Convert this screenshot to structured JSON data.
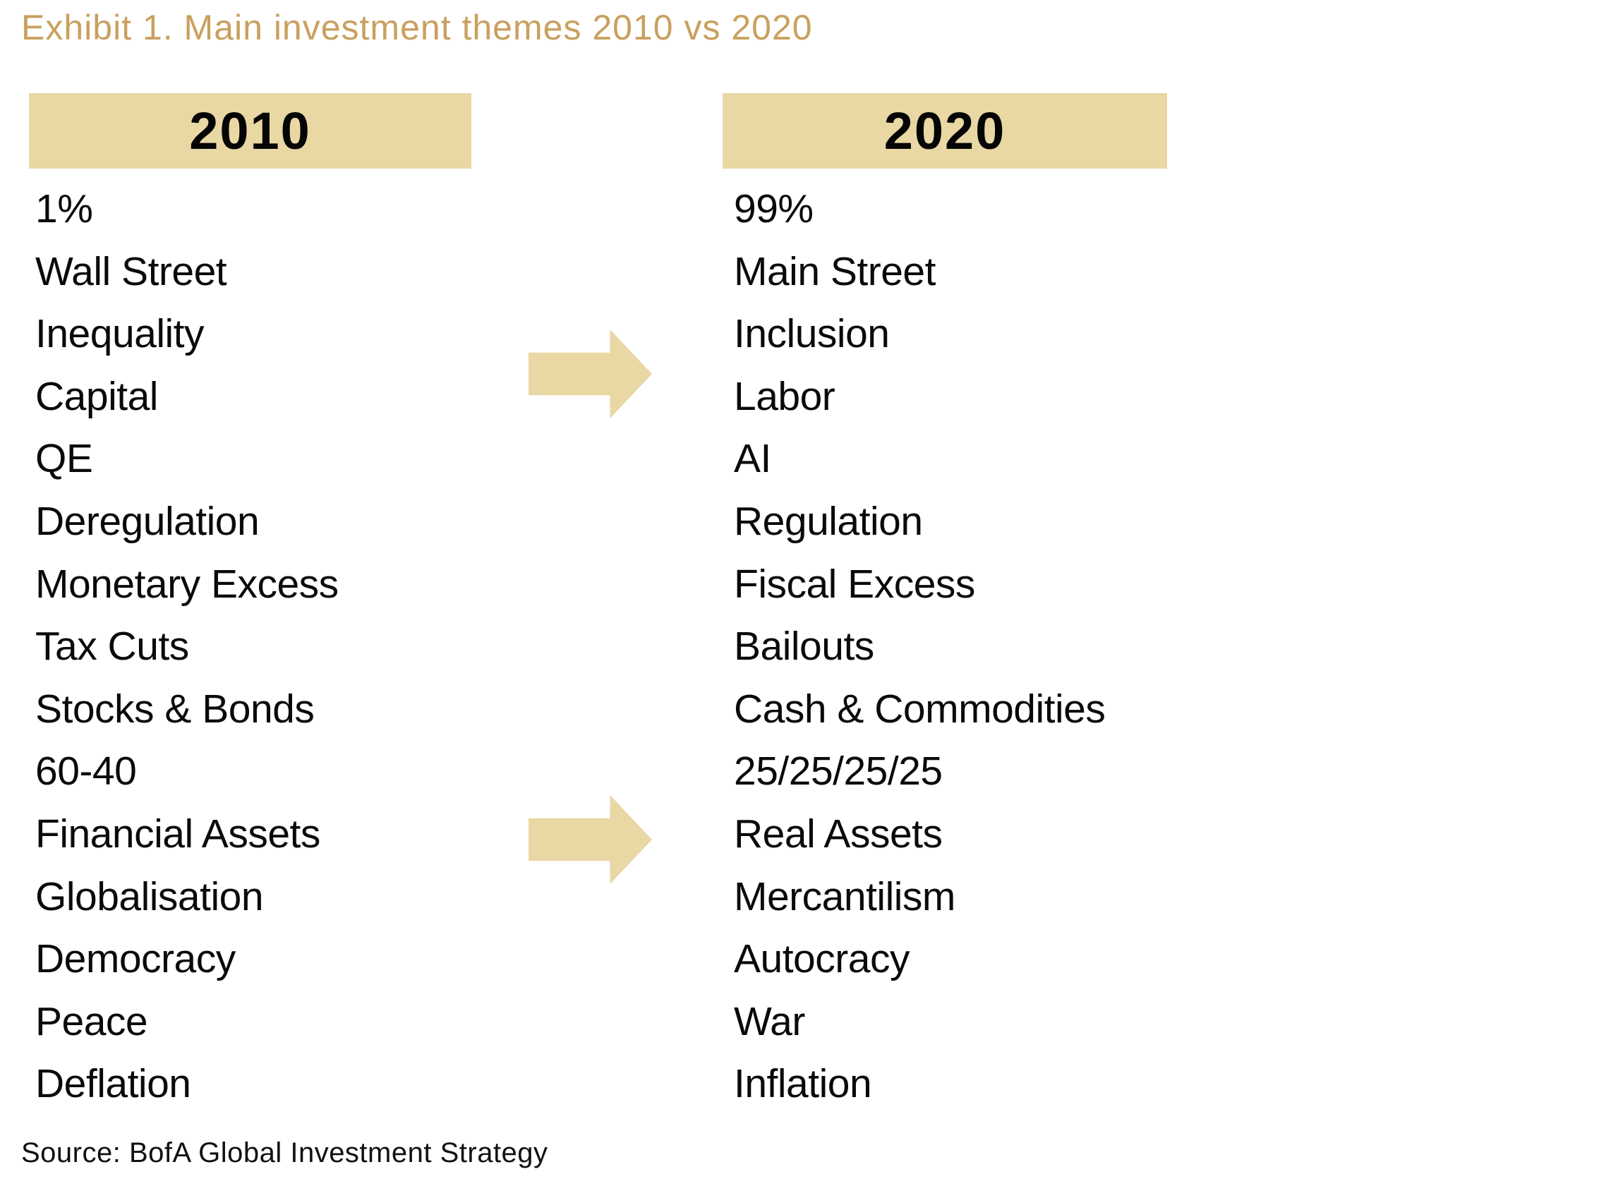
{
  "exhibit": {
    "title": "Exhibit 1. Main investment themes 2010 vs 2020",
    "source": "Source: BofA Global Investment Strategy"
  },
  "columns": [
    {
      "year": "2010",
      "items": [
        "1%",
        "Wall Street",
        "Inequality",
        "Capital",
        "QE",
        "Deregulation",
        "Monetary Excess",
        "Tax Cuts",
        "Stocks & Bonds",
        "60-40",
        "Financial Assets",
        "Globalisation",
        "Democracy",
        "Peace",
        "Deflation"
      ]
    },
    {
      "year": "2020",
      "items": [
        "99%",
        "Main Street",
        "Inclusion",
        "Labor",
        "AI",
        "Regulation",
        "Fiscal Excess",
        "Bailouts",
        "Cash & Commodities",
        "25/25/25/25",
        "Real Assets",
        "Mercantilism",
        "Autocracy",
        "War",
        "Inflation"
      ]
    }
  ],
  "icons": {
    "arrow_1": "right-block-arrow",
    "arrow_2": "right-block-arrow"
  },
  "colors": {
    "title_gold": "#c9a05e",
    "band_tan": "#e9d7a4",
    "text_black": "#0a0a0a",
    "background": "#ffffff"
  }
}
